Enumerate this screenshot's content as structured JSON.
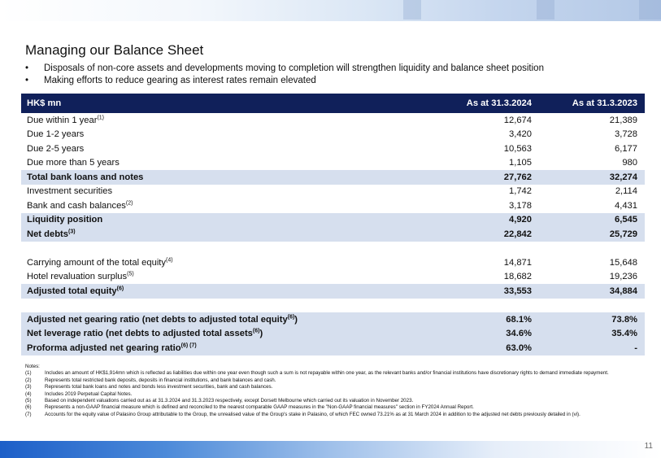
{
  "title": "Managing our Balance Sheet",
  "bullets": [
    "Disposals of non-core assets and developments moving to completion will strengthen liquidity and balance sheet position",
    "Making efforts to reduce gearing as interest rates remain elevated"
  ],
  "table": {
    "headers": {
      "label": "HK$ mn",
      "col1": "As at 31.3.2024",
      "col2": "As at 31.3.2023"
    },
    "rows": [
      {
        "label": "Due within 1 year",
        "sup": "(1)",
        "v1": "12,674",
        "v2": "21,389",
        "hl": false
      },
      {
        "label": "Due 1-2 years",
        "sup": "",
        "v1": "3,420",
        "v2": "3,728",
        "hl": false
      },
      {
        "label": "Due 2-5 years",
        "sup": "",
        "v1": "10,563",
        "v2": "6,177",
        "hl": false
      },
      {
        "label": "Due more than 5 years",
        "sup": "",
        "v1": "1,105",
        "v2": "980",
        "hl": false
      },
      {
        "label": "Total bank loans and notes",
        "sup": "",
        "v1": "27,762",
        "v2": "32,274",
        "hl": true
      },
      {
        "label": "Investment securities",
        "sup": "",
        "v1": "1,742",
        "v2": "2,114",
        "hl": false
      },
      {
        "label": "Bank and cash balances",
        "sup": "(2)",
        "v1": "3,178",
        "v2": "4,431",
        "hl": false
      },
      {
        "label": "Liquidity position",
        "sup": "",
        "v1": "4,920",
        "v2": "6,545",
        "hl": true
      },
      {
        "label": "Net debts",
        "sup": "(3)",
        "v1": "22,842",
        "v2": "25,729",
        "hl": true
      },
      {
        "gap": true
      },
      {
        "label": "Carrying amount of the total equity",
        "sup": "(4)",
        "v1": "14,871",
        "v2": "15,648",
        "hl": false
      },
      {
        "label": "Hotel revaluation surplus",
        "sup": "(5)",
        "v1": "18,682",
        "v2": "19,236",
        "hl": false
      },
      {
        "label": "Adjusted total equity",
        "sup": "(6)",
        "v1": "33,553",
        "v2": "34,884",
        "hl": true
      },
      {
        "gap": true
      },
      {
        "label": "Adjusted net gearing ratio (net debts to adjusted total equity",
        "sup": "(6)",
        "tail": ")",
        "v1": "68.1%",
        "v2": "73.8%",
        "hl": true
      },
      {
        "label": "Net leverage ratio (net debts to adjusted total assets",
        "sup": "(6)",
        "tail": ")",
        "v1": "34.6%",
        "v2": "35.4%",
        "hl": true
      },
      {
        "label": "Proforma adjusted net gearing ratio",
        "sup": "(6) (7)",
        "tail": "",
        "v1": "63.0%",
        "v2": "-",
        "hl": true
      }
    ]
  },
  "notes": {
    "heading": "Notes:",
    "items": [
      {
        "key": "(1)",
        "text": "Includes an amount of HK$1,914mn which is reflected as liabilities due within one year even though such a sum is not repayable within one year, as the relevant banks and/or financial institutions have discretionary rights to demand immediate repayment."
      },
      {
        "key": "(2)",
        "text": "Represents total restricted bank deposits, deposits in financial institutions, and bank balances and cash."
      },
      {
        "key": "(3)",
        "text": "Represents total bank loans and notes and bonds less investment securities, bank and cash balances."
      },
      {
        "key": "(4)",
        "text": "Includes 2019 Perpetual Capital Notes."
      },
      {
        "key": "(5)",
        "text": "Based on independent valuations carried out as at 31.3.2024 and 31.3.2023 respectively, except Dorsett Melbourne which carried out its valuation in November 2023."
      },
      {
        "key": "(6)",
        "text": "Represents a non-GAAP financial measure which is defined and reconciled to the nearest comparable GAAP measures in the \"Non-GAAP financial measures\" section in FY2024 Annual Report."
      },
      {
        "key": "(7)",
        "text": "Accounts for the equity value of Palasino Group attributable to the Group, the unrealised value of the Group's stake in Palasino, of which FEC owned 73.21% as at 31 March 2024 in addition to the adjusted net debts previously detailed in (vi)."
      }
    ]
  },
  "page_number": "11",
  "colors": {
    "header_bg": "#10205a",
    "highlight_bg": "#d6dfee"
  }
}
